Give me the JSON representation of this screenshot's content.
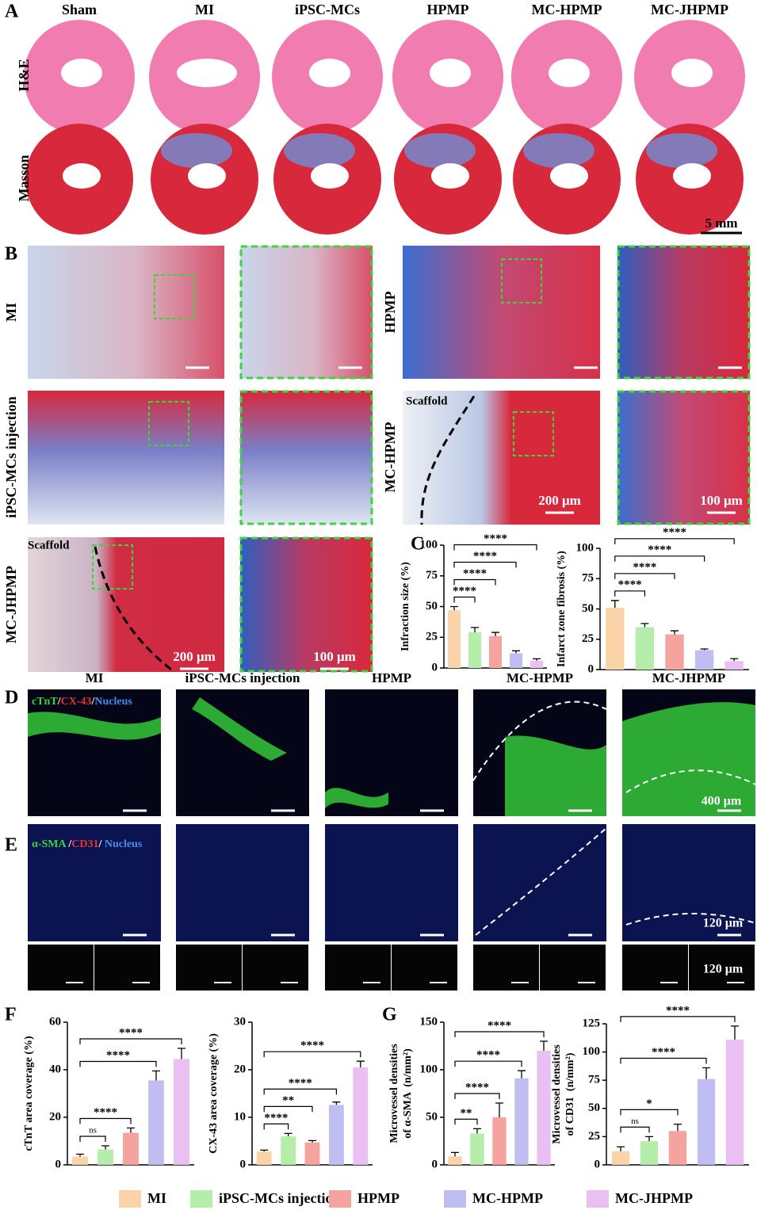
{
  "panel_labels": [
    "A",
    "B",
    "C",
    "D",
    "E",
    "F",
    "G"
  ],
  "panel_a": {
    "columns": [
      "Sham",
      "MI",
      "iPSC-MCs",
      "HPMP",
      "MC-HPMP",
      "MC-JHPMP"
    ],
    "rows": [
      "H&E",
      "Masson"
    ],
    "scale_bar": "5 mm"
  },
  "panel_b": {
    "labels": [
      "MI",
      "HPMP",
      "iPSC-MCs injection",
      "MC-HPMP",
      "MC-JHPMP"
    ],
    "scaffold": "Scaffold",
    "scale_bars": [
      "200 μm",
      "100 μm"
    ]
  },
  "panel_d": {
    "columns": [
      "MI",
      "iPSC-MCs injection",
      "HPMP",
      "MC-HPMP",
      "MC-JHPMP"
    ],
    "stain": [
      {
        "text": "cTnT",
        "color": "#39d43a"
      },
      {
        "text": "/",
        "color": "#ffffff"
      },
      {
        "text": "CX-43",
        "color": "#e8322e"
      },
      {
        "text": "/",
        "color": "#ffffff"
      },
      {
        "text": "Nucleus",
        "color": "#3f8fe8"
      }
    ],
    "scale_bar": "400 μm"
  },
  "panel_e": {
    "stain": [
      {
        "text": "α-SMA ",
        "color": "#39d43a"
      },
      {
        "text": "/",
        "color": "#ffffff"
      },
      {
        "text": "CD31",
        "color": "#e8322e"
      },
      {
        "text": "/ ",
        "color": "#ffffff"
      },
      {
        "text": "Nucleus",
        "color": "#3f8fe8"
      }
    ],
    "scale_bar": "120 μm"
  },
  "legend": [
    {
      "name": "MI",
      "color": "#fad4a8"
    },
    {
      "name": "iPSC-MCs injection",
      "color": "#b5eeaa"
    },
    {
      "name": "HPMP",
      "color": "#f5a39f"
    },
    {
      "name": "MC-HPMP",
      "color": "#c0bdf3"
    },
    {
      "name": "MC-JHPMP",
      "color": "#eabff1"
    }
  ],
  "chart_data": [
    {
      "type": "bar",
      "ylabel": "Infraction size (%)",
      "categories": [
        null,
        null,
        null,
        null,
        null
      ],
      "values": [
        47,
        29,
        26,
        12,
        6
      ],
      "errors": [
        3,
        4,
        3,
        2,
        1.5
      ],
      "colors": [
        "#fad4a8",
        "#b5eeaa",
        "#f5a39f",
        "#c0bdf3",
        "#eabff1"
      ],
      "ylim": [
        0,
        100
      ],
      "yticks": [
        0,
        25,
        50,
        75,
        100
      ],
      "comparisons": [
        "****",
        "****",
        "****",
        "****"
      ]
    },
    {
      "type": "bar",
      "ylabel": "Infarct zone fibrosis (%)",
      "categories": [
        null,
        null,
        null,
        null,
        null
      ],
      "values": [
        51,
        35,
        29,
        16,
        7
      ],
      "errors": [
        6,
        3,
        3,
        1,
        2
      ],
      "colors": [
        "#fad4a8",
        "#b5eeaa",
        "#f5a39f",
        "#c0bdf3",
        "#eabff1"
      ],
      "ylim": [
        0,
        100
      ],
      "yticks": [
        0,
        25,
        50,
        75,
        100
      ],
      "comparisons": [
        "****",
        "****",
        "****",
        "****"
      ]
    },
    {
      "type": "bar",
      "ylabel": "cTnT area coverage (%)",
      "categories": [
        null,
        null,
        null,
        null,
        null
      ],
      "values": [
        3.5,
        6.5,
        13.5,
        35.5,
        44.5
      ],
      "errors": [
        1,
        1.5,
        2,
        4,
        4.5
      ],
      "colors": [
        "#fad4a8",
        "#b5eeaa",
        "#f5a39f",
        "#c0bdf3",
        "#eabff1"
      ],
      "ylim": [
        0,
        60
      ],
      "yticks": [
        0,
        20,
        40,
        60
      ],
      "comparisons": [
        "ns",
        "****",
        "****",
        "****"
      ]
    },
    {
      "type": "bar",
      "ylabel": "CX-43 area coverage (%)",
      "categories": [
        null,
        null,
        null,
        null,
        null
      ],
      "values": [
        2.8,
        6,
        4.7,
        12.6,
        20.5
      ],
      "errors": [
        0.3,
        0.6,
        0.4,
        0.6,
        1.3
      ],
      "colors": [
        "#fad4a8",
        "#b5eeaa",
        "#f5a39f",
        "#c0bdf3",
        "#eabff1"
      ],
      "ylim": [
        0,
        30
      ],
      "yticks": [
        0,
        10,
        20,
        30
      ],
      "comparisons": [
        "****",
        "**",
        "****",
        "****"
      ]
    },
    {
      "type": "bar",
      "ylabel": [
        "Microvessel densities",
        "of α-SMA  (n/mm²)"
      ],
      "categories": [
        null,
        null,
        null,
        null,
        null
      ],
      "values": [
        9,
        33,
        50,
        91,
        120
      ],
      "errors": [
        4,
        5,
        15,
        8,
        10
      ],
      "colors": [
        "#fad4a8",
        "#b5eeaa",
        "#f5a39f",
        "#c0bdf3",
        "#eabff1"
      ],
      "ylim": [
        0,
        150
      ],
      "yticks": [
        0,
        50,
        100,
        150
      ],
      "comparisons": [
        "**",
        "****",
        "****",
        "****"
      ]
    },
    {
      "type": "bar",
      "ylabel": [
        "Microvessel densities",
        "of CD31  (n/mm²)"
      ],
      "categories": [
        null,
        null,
        null,
        null,
        null
      ],
      "values": [
        12,
        21,
        30,
        76,
        111
      ],
      "errors": [
        4,
        4,
        6,
        10,
        12
      ],
      "colors": [
        "#fad4a8",
        "#b5eeaa",
        "#f5a39f",
        "#c0bdf3",
        "#eabff1"
      ],
      "ylim": [
        0,
        125
      ],
      "yticks": [
        0,
        25,
        50,
        75,
        100,
        125
      ],
      "comparisons": [
        "ns",
        "*",
        "****",
        "****"
      ]
    }
  ]
}
